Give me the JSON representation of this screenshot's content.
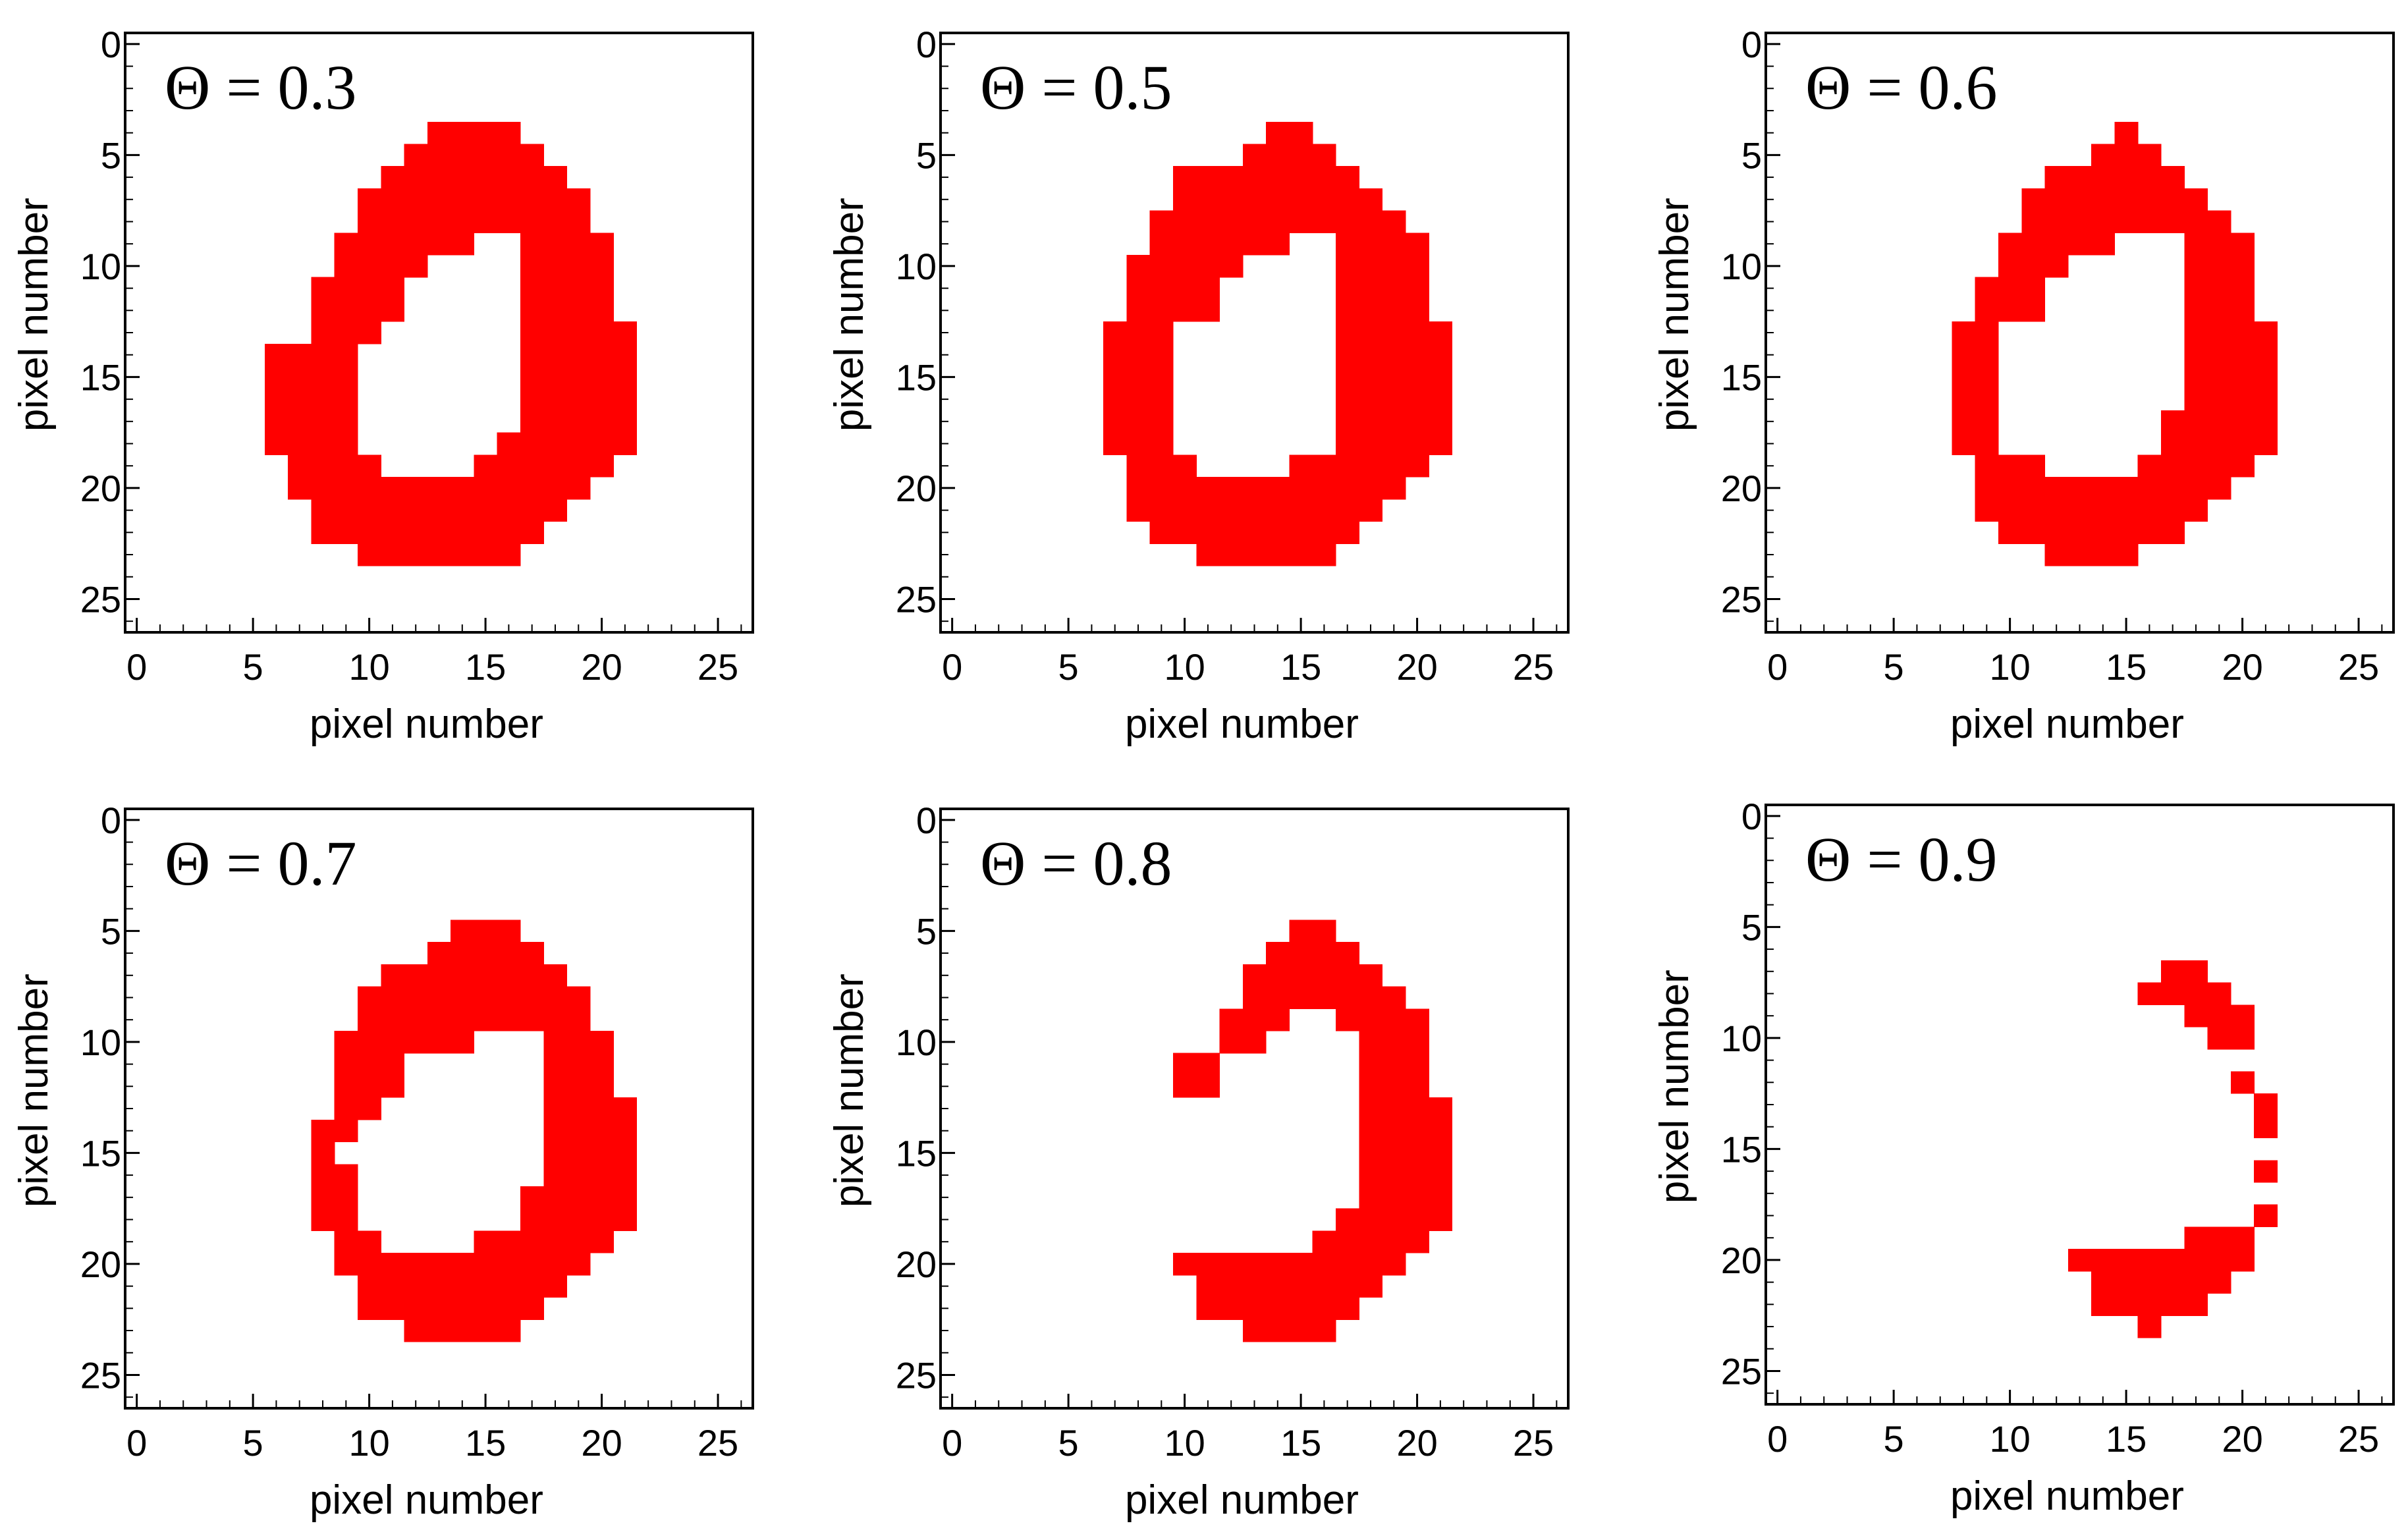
{
  "chart_data": [
    {
      "type": "heatmap",
      "title": "Θ = 0.3",
      "xlabel": "pixel number",
      "ylabel": "pixel number",
      "xlim": [
        -0.5,
        26.5
      ],
      "ylim": [
        -0.5,
        26.5
      ],
      "xticks": [
        "0",
        "5",
        "10",
        "15",
        "20",
        "25"
      ],
      "yticks": [
        "0",
        "5",
        "10",
        "15",
        "20",
        "25"
      ],
      "rows": [
        [
          4,
          13,
          16
        ],
        [
          5,
          12,
          17
        ],
        [
          6,
          11,
          18
        ],
        [
          7,
          10,
          19
        ],
        [
          8,
          10,
          19
        ],
        [
          9,
          9,
          14
        ],
        [
          9,
          17,
          20
        ],
        [
          10,
          9,
          12
        ],
        [
          10,
          17,
          20
        ],
        [
          11,
          8,
          11
        ],
        [
          11,
          17,
          20
        ],
        [
          12,
          8,
          11
        ],
        [
          12,
          17,
          20
        ],
        [
          13,
          8,
          10
        ],
        [
          13,
          17,
          21
        ],
        [
          14,
          6,
          9
        ],
        [
          14,
          17,
          21
        ],
        [
          15,
          6,
          9
        ],
        [
          15,
          17,
          21
        ],
        [
          16,
          6,
          9
        ],
        [
          16,
          17,
          21
        ],
        [
          17,
          6,
          9
        ],
        [
          17,
          17,
          21
        ],
        [
          18,
          6,
          9
        ],
        [
          18,
          16,
          21
        ],
        [
          19,
          7,
          10
        ],
        [
          19,
          15,
          20
        ],
        [
          20,
          7,
          19
        ],
        [
          21,
          8,
          18
        ],
        [
          22,
          8,
          17
        ],
        [
          23,
          10,
          16
        ]
      ],
      "pixel_color": "#ff0000"
    },
    {
      "type": "heatmap",
      "title": "Θ = 0.5",
      "xlabel": "pixel number",
      "ylabel": "pixel number",
      "xlim": [
        -0.5,
        26.5
      ],
      "ylim": [
        -0.5,
        26.5
      ],
      "xticks": [
        "0",
        "5",
        "10",
        "15",
        "20",
        "25"
      ],
      "yticks": [
        "0",
        "5",
        "10",
        "15",
        "20",
        "25"
      ],
      "rows": [
        [
          4,
          14,
          15
        ],
        [
          5,
          13,
          16
        ],
        [
          6,
          10,
          17
        ],
        [
          7,
          10,
          18
        ],
        [
          8,
          9,
          19
        ],
        [
          9,
          9,
          14
        ],
        [
          9,
          17,
          20
        ],
        [
          10,
          8,
          12
        ],
        [
          10,
          17,
          20
        ],
        [
          11,
          8,
          11
        ],
        [
          11,
          17,
          20
        ],
        [
          12,
          8,
          11
        ],
        [
          12,
          17,
          20
        ],
        [
          13,
          7,
          9
        ],
        [
          13,
          17,
          21
        ],
        [
          14,
          7,
          9
        ],
        [
          14,
          17,
          21
        ],
        [
          15,
          7,
          9
        ],
        [
          15,
          17,
          21
        ],
        [
          16,
          7,
          9
        ],
        [
          16,
          17,
          21
        ],
        [
          17,
          7,
          9
        ],
        [
          17,
          17,
          21
        ],
        [
          18,
          7,
          9
        ],
        [
          18,
          17,
          21
        ],
        [
          19,
          8,
          10
        ],
        [
          19,
          15,
          20
        ],
        [
          20,
          8,
          19
        ],
        [
          21,
          8,
          18
        ],
        [
          22,
          9,
          17
        ],
        [
          23,
          11,
          16
        ]
      ],
      "pixel_color": "#ff0000"
    },
    {
      "type": "heatmap",
      "title": "Θ = 0.6",
      "xlabel": "pixel number",
      "ylabel": "pixel number",
      "xlim": [
        -0.5,
        26.5
      ],
      "ylim": [
        -0.5,
        26.5
      ],
      "xticks": [
        "0",
        "5",
        "10",
        "15",
        "20",
        "25"
      ],
      "yticks": [
        "0",
        "5",
        "10",
        "15",
        "20",
        "25"
      ],
      "rows": [
        [
          4,
          15,
          15
        ],
        [
          5,
          14,
          16
        ],
        [
          6,
          12,
          17
        ],
        [
          7,
          11,
          18
        ],
        [
          8,
          11,
          19
        ],
        [
          9,
          10,
          14
        ],
        [
          9,
          18,
          20
        ],
        [
          10,
          10,
          12
        ],
        [
          10,
          18,
          20
        ],
        [
          11,
          9,
          11
        ],
        [
          11,
          18,
          20
        ],
        [
          12,
          9,
          11
        ],
        [
          12,
          18,
          20
        ],
        [
          13,
          8,
          9
        ],
        [
          13,
          18,
          21
        ],
        [
          14,
          8,
          9
        ],
        [
          14,
          18,
          21
        ],
        [
          15,
          8,
          9
        ],
        [
          15,
          18,
          21
        ],
        [
          16,
          8,
          9
        ],
        [
          16,
          18,
          21
        ],
        [
          17,
          8,
          9
        ],
        [
          17,
          17,
          21
        ],
        [
          18,
          8,
          9
        ],
        [
          18,
          17,
          21
        ],
        [
          19,
          9,
          11
        ],
        [
          19,
          16,
          20
        ],
        [
          20,
          9,
          19
        ],
        [
          21,
          9,
          18
        ],
        [
          22,
          10,
          17
        ],
        [
          23,
          12,
          15
        ]
      ],
      "pixel_color": "#ff0000"
    },
    {
      "type": "heatmap",
      "title": "Θ = 0.7",
      "xlabel": "pixel number",
      "ylabel": "pixel number",
      "xlim": [
        -0.5,
        26.5
      ],
      "ylim": [
        -0.5,
        26.5
      ],
      "xticks": [
        "0",
        "5",
        "10",
        "15",
        "20",
        "25"
      ],
      "yticks": [
        "0",
        "5",
        "10",
        "15",
        "20",
        "25"
      ],
      "rows": [
        [
          5,
          14,
          16
        ],
        [
          6,
          13,
          17
        ],
        [
          7,
          11,
          18
        ],
        [
          8,
          10,
          19
        ],
        [
          9,
          10,
          19
        ],
        [
          10,
          9,
          14
        ],
        [
          10,
          18,
          20
        ],
        [
          11,
          9,
          11
        ],
        [
          11,
          18,
          20
        ],
        [
          12,
          9,
          11
        ],
        [
          12,
          18,
          20
        ],
        [
          13,
          9,
          10
        ],
        [
          13,
          18,
          21
        ],
        [
          14,
          8,
          9
        ],
        [
          14,
          18,
          21
        ],
        [
          15,
          8,
          8
        ],
        [
          15,
          18,
          21
        ],
        [
          16,
          8,
          9
        ],
        [
          16,
          18,
          21
        ],
        [
          17,
          8,
          9
        ],
        [
          17,
          17,
          21
        ],
        [
          18,
          8,
          9
        ],
        [
          18,
          17,
          21
        ],
        [
          19,
          9,
          10
        ],
        [
          19,
          15,
          20
        ],
        [
          20,
          9,
          19
        ],
        [
          21,
          10,
          18
        ],
        [
          22,
          10,
          17
        ],
        [
          23,
          12,
          16
        ]
      ],
      "pixel_color": "#ff0000"
    },
    {
      "type": "heatmap",
      "title": "Θ = 0.8",
      "xlabel": "pixel number",
      "ylabel": "pixel number",
      "xlim": [
        -0.5,
        26.5
      ],
      "ylim": [
        -0.5,
        26.5
      ],
      "xticks": [
        "0",
        "5",
        "10",
        "15",
        "20",
        "25"
      ],
      "yticks": [
        "0",
        "5",
        "10",
        "15",
        "20",
        "25"
      ],
      "rows": [
        [
          5,
          15,
          16
        ],
        [
          6,
          14,
          17
        ],
        [
          7,
          13,
          18
        ],
        [
          8,
          13,
          19
        ],
        [
          9,
          12,
          14
        ],
        [
          9,
          17,
          20
        ],
        [
          10,
          12,
          13
        ],
        [
          10,
          18,
          20
        ],
        [
          11,
          10,
          11
        ],
        [
          11,
          18,
          20
        ],
        [
          12,
          10,
          11
        ],
        [
          12,
          18,
          20
        ],
        [
          13,
          18,
          21
        ],
        [
          14,
          18,
          21
        ],
        [
          15,
          18,
          21
        ],
        [
          16,
          18,
          21
        ],
        [
          17,
          18,
          21
        ],
        [
          18,
          17,
          21
        ],
        [
          19,
          16,
          20
        ],
        [
          20,
          10,
          19
        ],
        [
          21,
          11,
          18
        ],
        [
          22,
          11,
          17
        ],
        [
          23,
          13,
          16
        ]
      ],
      "pixel_color": "#ff0000"
    },
    {
      "type": "heatmap",
      "title": "Θ = 0.9",
      "xlabel": "pixel number",
      "ylabel": "pixel number",
      "xlim": [
        -0.5,
        26.5
      ],
      "ylim": [
        -0.5,
        26.5
      ],
      "xticks": [
        "0",
        "5",
        "10",
        "15",
        "20",
        "25"
      ],
      "yticks": [
        "0",
        "5",
        "10",
        "15",
        "20",
        "25"
      ],
      "rows": [
        [
          7,
          17,
          18
        ],
        [
          8,
          16,
          19
        ],
        [
          9,
          18,
          20
        ],
        [
          10,
          19,
          20
        ],
        [
          12,
          20,
          20
        ],
        [
          13,
          21,
          21
        ],
        [
          14,
          21,
          21
        ],
        [
          16,
          21,
          21
        ],
        [
          18,
          21,
          21
        ],
        [
          19,
          18,
          20
        ],
        [
          20,
          13,
          20
        ],
        [
          21,
          14,
          19
        ],
        [
          22,
          14,
          18
        ],
        [
          23,
          16,
          16
        ]
      ],
      "pixel_color": "#ff0000"
    }
  ]
}
